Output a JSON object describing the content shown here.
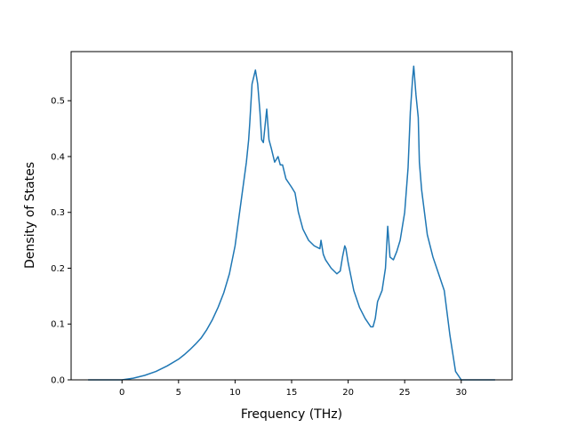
{
  "chart_data": {
    "type": "line",
    "title": "",
    "xlabel": "Frequency (THz)",
    "ylabel": "Density of States",
    "xlim": [
      -4.5,
      34.5
    ],
    "ylim": [
      0.0,
      0.588
    ],
    "xticks": [
      0,
      5,
      10,
      15,
      20,
      25,
      30
    ],
    "yticks": [
      0.0,
      0.1,
      0.2,
      0.3,
      0.4,
      0.5
    ],
    "xtick_labels": [
      "0",
      "5",
      "10",
      "15",
      "20",
      "25",
      "30"
    ],
    "ytick_labels": [
      "0.0",
      "0.1",
      "0.2",
      "0.3",
      "0.4",
      "0.5"
    ],
    "grid": false,
    "legend": "none",
    "series": [
      {
        "color": "#1f77b4",
        "x": [
          -3.0,
          -1.0,
          0.0,
          1.0,
          2.0,
          3.0,
          4.0,
          5.0,
          5.5,
          6.0,
          6.5,
          7.0,
          7.5,
          8.0,
          8.5,
          9.0,
          9.5,
          10.0,
          10.3,
          10.6,
          11.0,
          11.2,
          11.3,
          11.5,
          11.8,
          12.0,
          12.2,
          12.35,
          12.5,
          12.8,
          13.0,
          13.2,
          13.5,
          13.8,
          14.0,
          14.2,
          14.5,
          15.0,
          15.3,
          15.6,
          16.0,
          16.5,
          17.0,
          17.5,
          17.6,
          17.8,
          18.0,
          18.5,
          19.0,
          19.3,
          19.5,
          19.7,
          19.8,
          20.0,
          20.2,
          20.5,
          21.0,
          21.5,
          22.0,
          22.2,
          22.4,
          22.6,
          23.0,
          23.3,
          23.5,
          23.7,
          24.0,
          24.3,
          24.6,
          25.0,
          25.3,
          25.5,
          25.7,
          25.8,
          26.0,
          26.2,
          26.3,
          26.5,
          27.0,
          27.5,
          28.0,
          28.5,
          29.0,
          29.5,
          30.0,
          31.0,
          33.0
        ],
        "y": [
          0.0,
          0.0,
          0.0,
          0.003,
          0.008,
          0.015,
          0.025,
          0.037,
          0.045,
          0.054,
          0.064,
          0.075,
          0.09,
          0.108,
          0.13,
          0.156,
          0.19,
          0.24,
          0.285,
          0.33,
          0.39,
          0.43,
          0.46,
          0.53,
          0.555,
          0.53,
          0.48,
          0.43,
          0.425,
          0.485,
          0.43,
          0.415,
          0.39,
          0.4,
          0.385,
          0.385,
          0.36,
          0.345,
          0.335,
          0.3,
          0.27,
          0.25,
          0.24,
          0.235,
          0.25,
          0.225,
          0.215,
          0.2,
          0.19,
          0.195,
          0.22,
          0.24,
          0.235,
          0.21,
          0.19,
          0.16,
          0.13,
          0.11,
          0.095,
          0.095,
          0.11,
          0.14,
          0.16,
          0.2,
          0.275,
          0.22,
          0.215,
          0.23,
          0.25,
          0.3,
          0.38,
          0.48,
          0.54,
          0.562,
          0.51,
          0.47,
          0.39,
          0.34,
          0.26,
          0.22,
          0.19,
          0.16,
          0.08,
          0.015,
          0.0,
          0.0,
          0.0
        ]
      }
    ]
  }
}
